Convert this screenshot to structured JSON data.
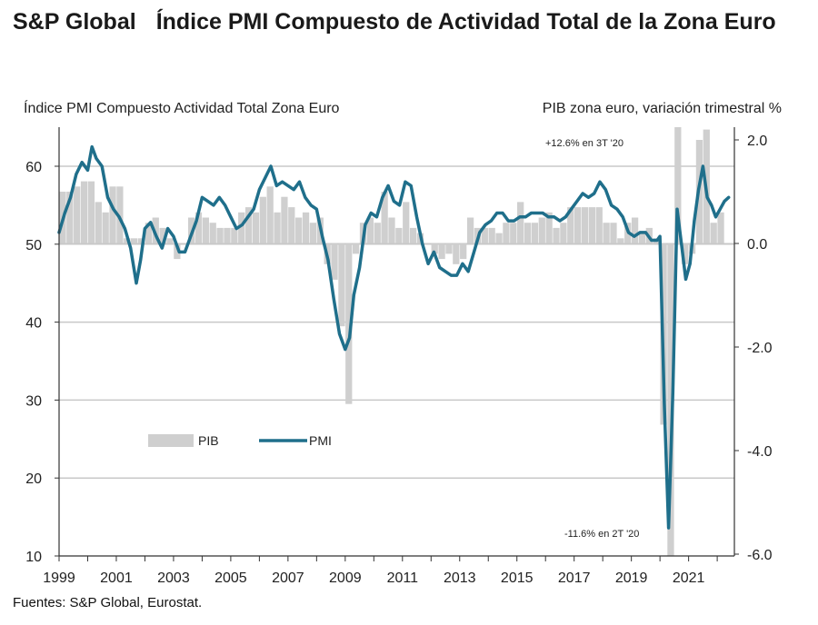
{
  "header": {
    "brand": "S&P Global",
    "title": "Índice PMI Compuesto de Actividad Total de la Zona Euro"
  },
  "footer": {
    "source": "Fuentes: S&P Global, Eurostat."
  },
  "colors": {
    "pmi": "#1f6f8b",
    "gdp": "#cfcfcf",
    "grid": "#c8c8c8",
    "axis": "#333333"
  },
  "chart_data": {
    "type": "line",
    "left_axis_label": "Índice PMI  Compuesto  Actividad Total Zona Euro",
    "right_axis_label": "PIB  zona euro, variación trimestral %",
    "left_ticks": [
      "10",
      "20",
      "30",
      "40",
      "50",
      "60"
    ],
    "left_ylim": [
      10,
      65
    ],
    "right_ticks": [
      "2.0",
      "0.0",
      "-2.0",
      "-4.0",
      "-6.0"
    ],
    "right_ylim": [
      -6.0,
      2.3
    ],
    "x_ticks": [
      "1999",
      "2001",
      "2003",
      "2005",
      "2007",
      "2009",
      "2011",
      "2013",
      "2015",
      "2017",
      "2019",
      "2021"
    ],
    "xlim": [
      1999.0,
      2022.6
    ],
    "grid": true,
    "legend": {
      "position": "lower-left",
      "items": [
        "PIB",
        "PMI"
      ]
    },
    "annotations": [
      {
        "text": "+12.6%  en  3T '20",
        "x": 2020.0,
        "y_right": 2.0
      },
      {
        "text": "-11.6%  en  2T '20",
        "x": 2019.8,
        "y_right": -5.7
      }
    ],
    "series": [
      {
        "name": "PIB",
        "kind": "bar",
        "axis": "right",
        "x": [
          1999.0,
          1999.25,
          1999.5,
          1999.75,
          2000.0,
          2000.25,
          2000.5,
          2000.75,
          2001.0,
          2001.25,
          2001.5,
          2001.75,
          2002.0,
          2002.25,
          2002.5,
          2002.75,
          2003.0,
          2003.25,
          2003.5,
          2003.75,
          2004.0,
          2004.25,
          2004.5,
          2004.75,
          2005.0,
          2005.25,
          2005.5,
          2005.75,
          2006.0,
          2006.25,
          2006.5,
          2006.75,
          2007.0,
          2007.25,
          2007.5,
          2007.75,
          2008.0,
          2008.25,
          2008.5,
          2008.75,
          2009.0,
          2009.25,
          2009.5,
          2009.75,
          2010.0,
          2010.25,
          2010.5,
          2010.75,
          2011.0,
          2011.25,
          2011.5,
          2011.75,
          2012.0,
          2012.25,
          2012.5,
          2012.75,
          2013.0,
          2013.25,
          2013.5,
          2013.75,
          2014.0,
          2014.25,
          2014.5,
          2014.75,
          2015.0,
          2015.25,
          2015.5,
          2015.75,
          2016.0,
          2016.25,
          2016.5,
          2016.75,
          2017.0,
          2017.25,
          2017.5,
          2017.75,
          2018.0,
          2018.25,
          2018.5,
          2018.75,
          2019.0,
          2019.25,
          2019.5,
          2019.75,
          2020.0,
          2020.25,
          2020.5,
          2020.75,
          2021.0,
          2021.25,
          2021.5,
          2021.75,
          2022.0
        ],
        "values": [
          1.0,
          1.0,
          1.1,
          1.2,
          1.2,
          0.8,
          0.6,
          1.1,
          1.1,
          0.1,
          0.1,
          0.1,
          0.4,
          0.5,
          0.3,
          0.1,
          -0.3,
          0.0,
          0.5,
          0.6,
          0.5,
          0.4,
          0.3,
          0.3,
          0.3,
          0.6,
          0.7,
          0.6,
          0.9,
          1.1,
          0.6,
          0.9,
          0.7,
          0.5,
          0.6,
          0.4,
          0.5,
          -0.4,
          -0.7,
          -1.6,
          -3.1,
          -0.2,
          0.4,
          0.5,
          0.4,
          1.0,
          0.5,
          0.3,
          0.8,
          0.3,
          0.2,
          0.0,
          -0.2,
          -0.3,
          -0.2,
          -0.4,
          -0.3,
          0.5,
          0.3,
          0.3,
          0.3,
          0.2,
          0.4,
          0.4,
          0.8,
          0.4,
          0.4,
          0.5,
          0.6,
          0.3,
          0.4,
          0.7,
          0.7,
          0.7,
          0.7,
          0.7,
          0.4,
          0.4,
          0.1,
          0.4,
          0.5,
          0.2,
          0.3,
          0.1,
          -3.5,
          -11.6,
          12.6,
          -0.4,
          -0.2,
          2.0,
          2.2,
          0.4,
          0.6
        ]
      },
      {
        "name": "PMI",
        "kind": "line",
        "axis": "left",
        "x": [
          1999.0,
          1999.2,
          1999.4,
          1999.6,
          1999.8,
          2000.0,
          2000.15,
          2000.3,
          2000.5,
          2000.7,
          2000.9,
          2001.1,
          2001.3,
          2001.5,
          2001.7,
          2001.85,
          2002.0,
          2002.2,
          2002.4,
          2002.6,
          2002.8,
          2003.0,
          2003.2,
          2003.4,
          2003.6,
          2003.8,
          2004.0,
          2004.2,
          2004.4,
          2004.6,
          2004.8,
          2005.0,
          2005.2,
          2005.4,
          2005.6,
          2005.8,
          2006.0,
          2006.2,
          2006.4,
          2006.6,
          2006.8,
          2007.0,
          2007.2,
          2007.4,
          2007.6,
          2007.8,
          2008.0,
          2008.2,
          2008.4,
          2008.6,
          2008.8,
          2009.0,
          2009.15,
          2009.3,
          2009.5,
          2009.7,
          2009.9,
          2010.1,
          2010.3,
          2010.5,
          2010.7,
          2010.9,
          2011.1,
          2011.3,
          2011.5,
          2011.7,
          2011.9,
          2012.1,
          2012.3,
          2012.5,
          2012.7,
          2012.9,
          2013.1,
          2013.3,
          2013.5,
          2013.7,
          2013.9,
          2014.1,
          2014.3,
          2014.5,
          2014.7,
          2014.9,
          2015.1,
          2015.3,
          2015.5,
          2015.7,
          2015.9,
          2016.1,
          2016.3,
          2016.5,
          2016.7,
          2016.9,
          2017.1,
          2017.3,
          2017.5,
          2017.7,
          2017.9,
          2018.1,
          2018.3,
          2018.5,
          2018.7,
          2018.9,
          2019.1,
          2019.3,
          2019.5,
          2019.7,
          2019.9,
          2020.0,
          2020.15,
          2020.3,
          2020.45,
          2020.6,
          2020.75,
          2020.9,
          2021.05,
          2021.2,
          2021.35,
          2021.5,
          2021.65,
          2021.8,
          2021.95,
          2022.1,
          2022.25,
          2022.4
        ],
        "values": [
          51.5,
          54.0,
          56.0,
          59.0,
          60.5,
          59.5,
          62.5,
          61.0,
          60.0,
          56.0,
          54.5,
          53.5,
          52.0,
          49.5,
          45.0,
          48.0,
          52.0,
          52.8,
          51.0,
          49.5,
          52.0,
          51.0,
          49.0,
          49.0,
          51.0,
          53.0,
          56.0,
          55.5,
          55.0,
          56.0,
          55.0,
          53.5,
          52.0,
          52.5,
          53.5,
          54.5,
          57.0,
          58.5,
          60.0,
          57.5,
          58.0,
          57.5,
          57.0,
          58.0,
          56.0,
          55.0,
          54.5,
          51.0,
          48.0,
          43.0,
          38.5,
          36.5,
          38.0,
          43.5,
          47.0,
          52.5,
          54.0,
          53.5,
          56.0,
          57.5,
          55.5,
          55.0,
          58.0,
          57.5,
          53.5,
          50.0,
          47.5,
          49.0,
          47.0,
          46.5,
          46.0,
          46.0,
          47.5,
          46.5,
          49.0,
          51.5,
          52.5,
          53.0,
          54.0,
          54.0,
          53.0,
          53.0,
          53.5,
          53.5,
          54.0,
          54.0,
          54.0,
          53.5,
          53.5,
          53.0,
          53.5,
          54.5,
          55.5,
          56.5,
          56.0,
          56.5,
          58.0,
          57.0,
          55.0,
          54.5,
          53.5,
          51.5,
          51.0,
          51.5,
          51.5,
          50.5,
          50.5,
          51.0,
          29.5,
          13.6,
          31.0,
          54.5,
          50.0,
          45.5,
          47.5,
          53.0,
          57.0,
          60.0,
          56.0,
          55.0,
          53.5,
          54.5,
          55.5,
          56.0
        ]
      }
    ]
  }
}
